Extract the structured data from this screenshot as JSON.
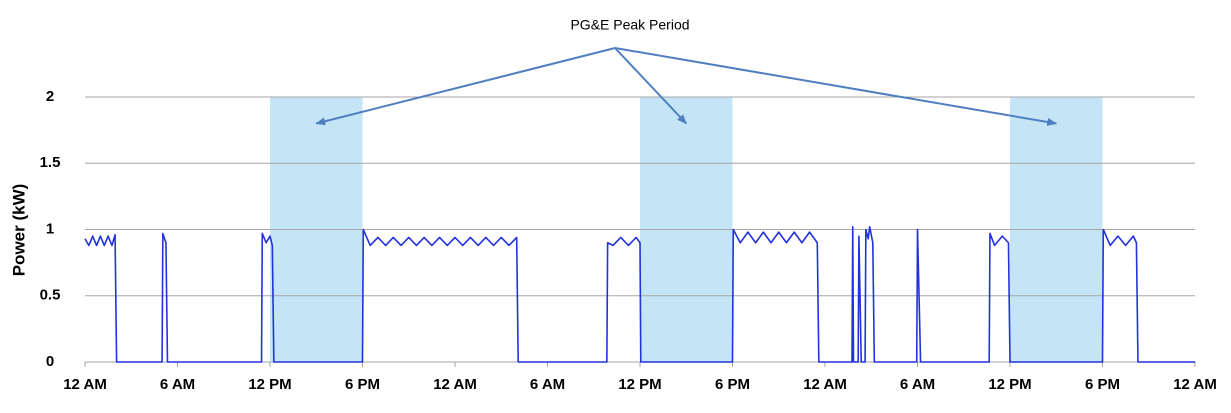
{
  "chart_data": {
    "type": "line",
    "annotation": "PG&E Peak Period",
    "y_label": "Power (kW)",
    "shaded_ranges": [
      [
        12,
        18
      ],
      [
        36,
        42
      ],
      [
        60,
        66
      ]
    ],
    "shade_color": "#c3e5f6",
    "grid": true,
    "xlim": [
      0,
      72
    ],
    "xticks": [
      {
        "value": 0,
        "label": "12 AM"
      },
      {
        "value": 6,
        "label": "6 AM"
      },
      {
        "value": 12,
        "label": "12 PM"
      },
      {
        "value": 18,
        "label": "6 PM"
      },
      {
        "value": 24,
        "label": "12 AM"
      },
      {
        "value": 30,
        "label": "6 AM"
      },
      {
        "value": 36,
        "label": "12 PM"
      },
      {
        "value": 42,
        "label": "6 PM"
      },
      {
        "value": 48,
        "label": "12 AM"
      },
      {
        "value": 54,
        "label": "6 AM"
      },
      {
        "value": 60,
        "label": "12 PM"
      },
      {
        "value": 66,
        "label": "6 PM"
      },
      {
        "value": 72,
        "label": "12 AM"
      }
    ],
    "ylim": [
      0,
      2
    ],
    "yticks": [
      0,
      0.5,
      1,
      1.5,
      2
    ],
    "x": [
      0,
      0.25,
      0.5,
      0.75,
      1,
      1.25,
      1.5,
      1.75,
      1.95,
      2.05,
      5,
      5.05,
      5.25,
      5.35,
      11.45,
      11.5,
      11.75,
      12,
      12.15,
      12.25,
      18,
      18.05,
      18.5,
      19,
      19.5,
      20,
      20.5,
      21,
      21.5,
      22,
      22.5,
      23,
      23.5,
      24,
      24.5,
      25,
      25.5,
      26,
      26.5,
      27,
      27.5,
      28,
      28.1,
      33.85,
      33.9,
      34.25,
      34.75,
      35.25,
      35.75,
      36,
      36.05,
      42,
      42.05,
      42.5,
      43,
      43.5,
      44,
      44.5,
      45,
      45.5,
      46,
      46.5,
      47,
      47.5,
      47.6,
      49.75,
      49.8,
      49.85,
      50.15,
      50.2,
      50.35,
      50.6,
      50.65,
      50.8,
      50.9,
      51.1,
      51.2,
      53.95,
      54,
      54.2,
      58.65,
      58.7,
      59,
      59.5,
      59.9,
      60,
      66,
      66.05,
      66.5,
      67,
      67.5,
      68,
      68.2,
      68.3,
      72
    ],
    "series": [
      {
        "color": "#2233dd",
        "values": [
          0.93,
          0.88,
          0.95,
          0.88,
          0.95,
          0.88,
          0.95,
          0.88,
          0.96,
          0,
          0,
          0.97,
          0.9,
          0,
          0,
          0.97,
          0.9,
          0.95,
          0.88,
          0,
          0,
          1.0,
          0.88,
          0.94,
          0.88,
          0.94,
          0.88,
          0.94,
          0.88,
          0.94,
          0.88,
          0.94,
          0.88,
          0.94,
          0.88,
          0.94,
          0.88,
          0.94,
          0.88,
          0.94,
          0.88,
          0.94,
          0,
          0,
          0.9,
          0.88,
          0.94,
          0.88,
          0.94,
          0.9,
          0,
          0,
          1.0,
          0.9,
          0.98,
          0.9,
          0.98,
          0.9,
          0.98,
          0.9,
          0.98,
          0.9,
          0.98,
          0.9,
          0,
          0,
          1.02,
          0,
          0,
          0.95,
          0,
          0,
          1.0,
          0.93,
          1.02,
          0.9,
          0,
          0,
          1.0,
          0,
          0,
          0.97,
          0.88,
          0.95,
          0.9,
          0,
          0,
          1.0,
          0.88,
          0.95,
          0.88,
          0.95,
          0.9,
          0,
          0
        ]
      }
    ]
  }
}
